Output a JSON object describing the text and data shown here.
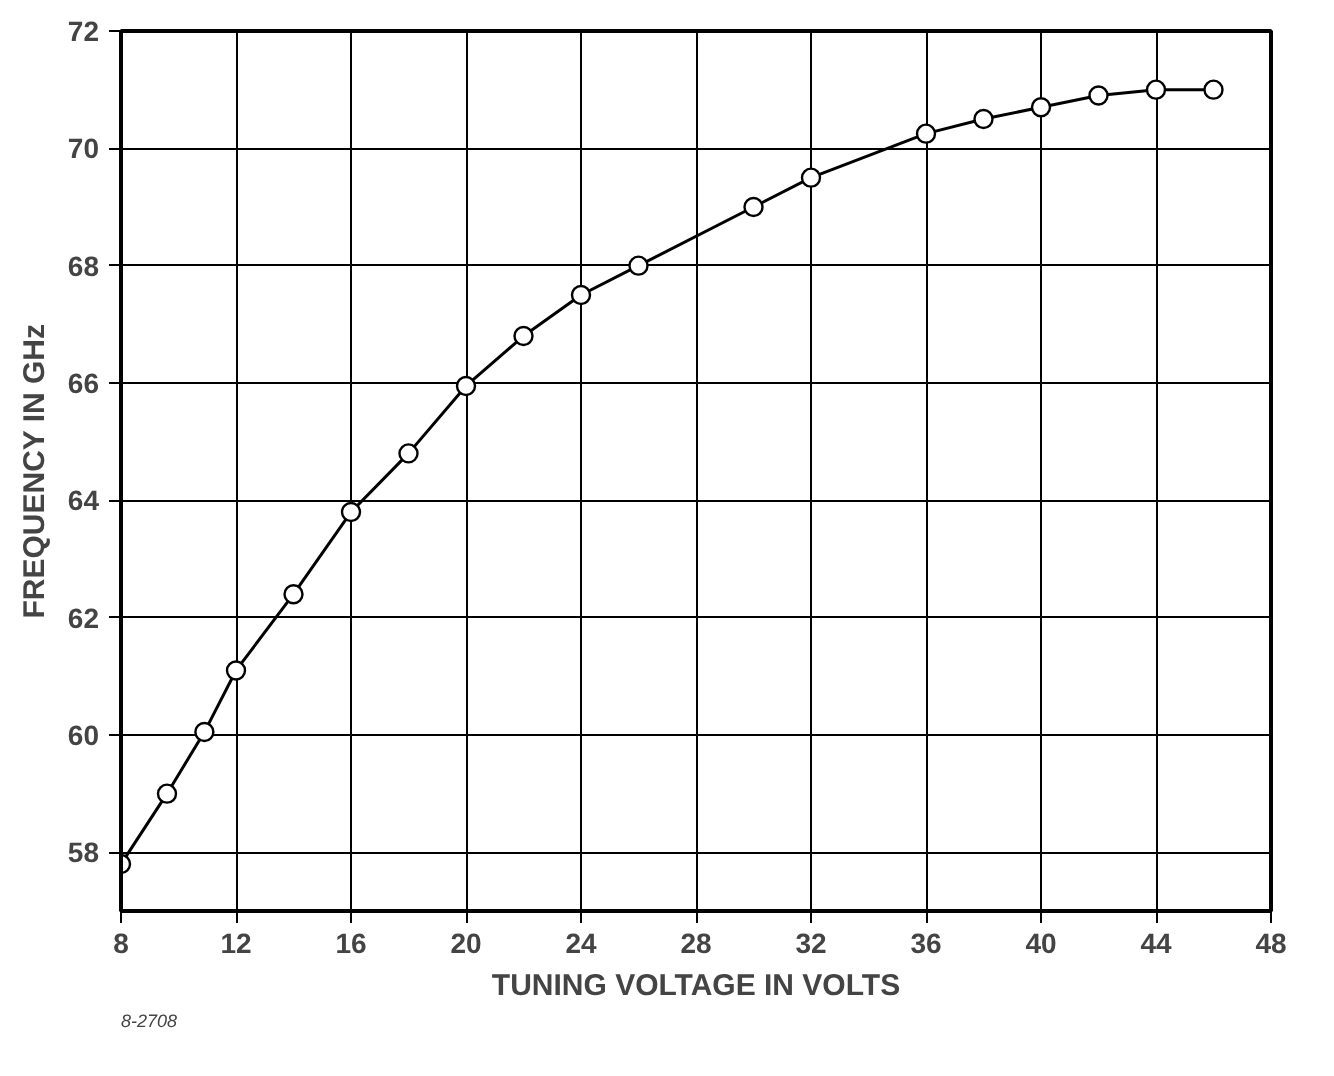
{
  "chart_data": {
    "type": "line",
    "xlabel": "TUNING VOLTAGE IN VOLTS",
    "ylabel": "FREQUENCY IN GHz",
    "x": [
      8,
      9.6,
      10.9,
      12,
      14,
      16,
      18,
      20,
      22,
      24,
      26,
      30,
      32,
      36,
      38,
      40,
      42,
      44,
      46
    ],
    "series": [
      {
        "color": "#000000",
        "values": [
          57.8,
          59.0,
          60.05,
          61.1,
          62.4,
          63.8,
          64.8,
          65.95,
          66.8,
          67.5,
          68.0,
          69.0,
          69.5,
          70.25,
          70.5,
          70.7,
          70.9,
          71.0,
          71.0
        ]
      }
    ],
    "xlim": [
      8,
      48
    ],
    "xticks": [
      8,
      12,
      16,
      20,
      24,
      28,
      32,
      36,
      40,
      44,
      48
    ],
    "ylim": [
      57,
      72
    ],
    "yticks": [
      58,
      60,
      62,
      64,
      66,
      68,
      70,
      72
    ],
    "grid": true,
    "marker": "circle",
    "line_style": "solid",
    "annotations": [
      "8-2708"
    ]
  }
}
